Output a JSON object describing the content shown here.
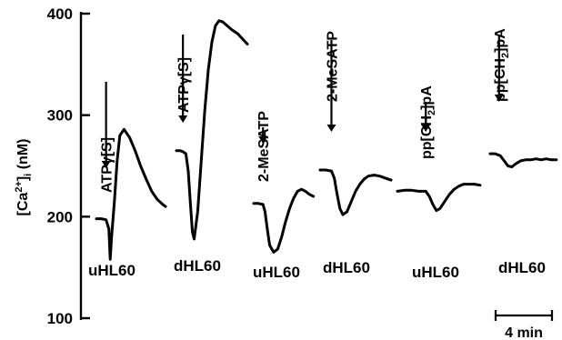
{
  "chart_data": {
    "type": "line",
    "title": "",
    "ylabel": "[Ca2+]i (nM)",
    "ylabel_parts": {
      "base": "[Ca",
      "sup": "2+",
      "close": "]",
      "sub": "i",
      "unit": " (nM)"
    },
    "ylim": [
      100,
      400
    ],
    "y_ticks": [
      100,
      200,
      300,
      400
    ],
    "scale_bar": "4 min",
    "traces": [
      {
        "agonist": "ATPγ[S]",
        "agonist_parts": [
          {
            "t": "ATPγ[S]"
          }
        ],
        "cell": "uHL60",
        "x_min": [
          0,
          0.35,
          0.7,
          0.9,
          1.0,
          1.1,
          1.3,
          1.5,
          1.7,
          2.0,
          2.4,
          2.8,
          3.2,
          3.6,
          4.0,
          4.4,
          4.8,
          5.0
        ],
        "y": [
          198,
          198,
          197,
          188,
          158,
          180,
          215,
          255,
          280,
          286,
          278,
          265,
          250,
          237,
          225,
          217,
          212,
          210
        ],
        "stim_min": 0.7
      },
      {
        "agonist": "ATPγ[S]",
        "agonist_parts": [
          {
            "t": "ATPγ[S]"
          }
        ],
        "cell": "dHL60",
        "x_min": [
          0,
          0.3,
          0.55,
          0.8,
          1.0,
          1.2,
          1.35,
          1.5,
          1.8,
          2.1,
          2.4,
          2.7,
          3.0,
          3.3,
          3.6,
          3.9,
          4.3,
          4.7,
          5.2,
          5.6,
          6.0
        ],
        "y": [
          265,
          265,
          264,
          262,
          245,
          210,
          185,
          178,
          205,
          255,
          305,
          345,
          372,
          388,
          393,
          392,
          388,
          384,
          380,
          375,
          370
        ],
        "stim_min": 0.55
      },
      {
        "agonist": "2-MeSATP",
        "agonist_parts": [
          {
            "t": "2-MeSATP"
          }
        ],
        "cell": "uHL60",
        "x_min": [
          0,
          0.35,
          0.7,
          0.85,
          1.0,
          1.2,
          1.5,
          1.8,
          2.1,
          2.4,
          2.7,
          3.0,
          3.3,
          3.6,
          3.9,
          4.2,
          4.5
        ],
        "y": [
          213,
          213,
          212,
          205,
          190,
          172,
          165,
          168,
          180,
          195,
          208,
          218,
          225,
          227,
          225,
          222,
          220
        ],
        "stim_min": 0.7
      },
      {
        "agonist": "2-MeSATP",
        "agonist_parts": [
          {
            "t": "2-MeSATP"
          }
        ],
        "cell": "dHL60",
        "x_min": [
          0,
          0.4,
          0.8,
          1.0,
          1.2,
          1.4,
          1.6,
          1.9,
          2.2,
          2.5,
          2.8,
          3.1,
          3.4,
          3.8,
          4.2,
          4.6,
          5.0
        ],
        "y": [
          246,
          246,
          245,
          238,
          222,
          208,
          202,
          205,
          215,
          225,
          232,
          237,
          240,
          241,
          240,
          238,
          236
        ],
        "stim_min": 0.8
      },
      {
        "agonist": "pp[CH2]pA",
        "agonist_parts": [
          {
            "t": "pp[CH"
          },
          {
            "t": "2",
            "sub": true
          },
          {
            "t": "]pA"
          }
        ],
        "cell": "uHL60",
        "x_min": [
          0,
          0.6,
          1.2,
          1.8,
          2.4,
          2.7,
          3.0,
          3.3,
          3.6,
          4.0,
          4.4,
          4.8,
          5.2,
          5.6,
          6.0,
          6.5,
          7.0
        ],
        "y": [
          225,
          226,
          226,
          225,
          225,
          220,
          212,
          206,
          208,
          215,
          222,
          227,
          230,
          232,
          232,
          232,
          231
        ],
        "stim_min": 2.4
      },
      {
        "agonist": "pp[CH2]pA",
        "agonist_parts": [
          {
            "t": "pp[CH"
          },
          {
            "t": "2",
            "sub": true
          },
          {
            "t": "]pA"
          }
        ],
        "cell": "dHL60",
        "x_min": [
          0,
          0.4,
          0.8,
          1.1,
          1.4,
          1.7,
          2.0,
          2.4,
          2.8,
          3.2,
          3.6,
          4.0,
          4.4,
          4.8,
          5.2
        ],
        "y": [
          262,
          262,
          260,
          255,
          250,
          249,
          252,
          255,
          256,
          256,
          257,
          256,
          257,
          256,
          256
        ],
        "stim_min": 0.7
      }
    ]
  }
}
